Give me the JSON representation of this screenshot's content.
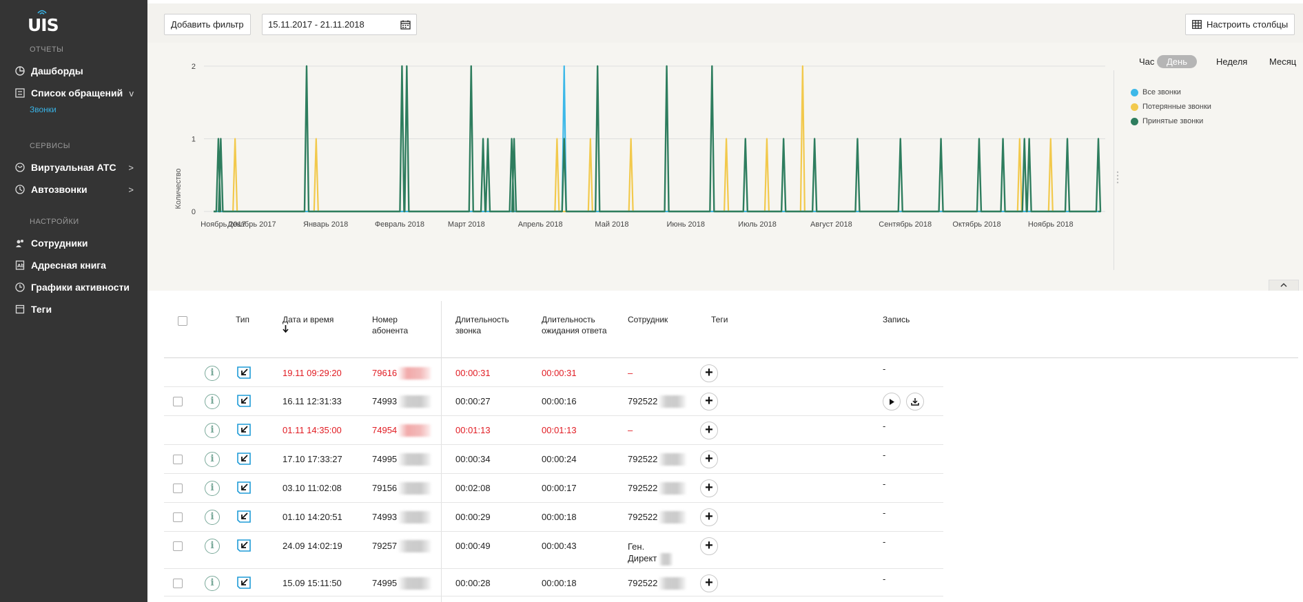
{
  "sidebar": {
    "logo": "UIS",
    "sections": [
      {
        "title": "ОТЧЕТЫ"
      },
      {
        "title": "СЕРВИСЫ"
      },
      {
        "title": "НАСТРОЙКИ"
      }
    ],
    "items": [
      {
        "label": "Дашборды",
        "icon": "pie-chart-icon"
      },
      {
        "label": "Список обращений",
        "icon": "list-icon",
        "chevron": "v"
      },
      {
        "label": "Виртуальная АТС",
        "icon": "cloud-phone-icon",
        "chevron": ">"
      },
      {
        "label": "Автозвонки",
        "icon": "autocall-icon",
        "chevron": ">"
      },
      {
        "label": "Сотрудники",
        "icon": "users-icon"
      },
      {
        "label": "Адресная книга",
        "icon": "address-book-icon"
      },
      {
        "label": "Графики активности",
        "icon": "clock-icon"
      },
      {
        "label": "Теги",
        "icon": "tags-icon"
      }
    ],
    "sub_item": "Звонки"
  },
  "toolbar": {
    "add_filter": "Добавить фильтр",
    "date_range": "15.11.2017 - 21.11.2018",
    "columns_button": "Настроить столбцы"
  },
  "granularity": {
    "options": [
      "Час",
      "День",
      "Неделя",
      "Месяц"
    ],
    "selected": "День"
  },
  "colors": {
    "all": "#3db8e8",
    "lost": "#f2c94c",
    "accepted": "#2e7d5e",
    "red_text": "#e11b22"
  },
  "chart_data": {
    "type": "line",
    "ylabel": "Количество",
    "ylim": [
      0,
      2
    ],
    "y_ticks": [
      "0",
      "1",
      "2"
    ],
    "x_tick_labels": [
      "Ноябрь 2017",
      "Декабрь 2017",
      "Январь 2018",
      "Февраль 2018",
      "Март 2018",
      "Апрель 2018",
      "Май 2018",
      "Июнь 2018",
      "Июль 2018",
      "Август 2018",
      "Сентябрь 2018",
      "Октябрь 2018",
      "Ноябрь 2018"
    ],
    "x_start": "2017-11-15",
    "x_end": "2018-11-21",
    "legend_position": "right",
    "series": [
      {
        "name": "Все звонки",
        "spikes": [
          {
            "date": "2018-04-11",
            "value": 2
          }
        ]
      },
      {
        "name": "Потерянные звонки",
        "spikes": [
          {
            "date": "2017-11-24",
            "value": 1
          },
          {
            "date": "2017-12-28",
            "value": 1
          },
          {
            "date": "2018-04-08",
            "value": 1
          },
          {
            "date": "2018-04-22",
            "value": 1
          },
          {
            "date": "2018-05-09",
            "value": 1
          },
          {
            "date": "2018-06-18",
            "value": 1
          },
          {
            "date": "2018-07-05",
            "value": 1
          },
          {
            "date": "2018-07-20",
            "value": 2
          },
          {
            "date": "2018-10-19",
            "value": 1
          },
          {
            "date": "2018-11-01",
            "value": 1
          }
        ]
      },
      {
        "name": "Принятые звонки",
        "spikes": [
          {
            "date": "2017-11-17",
            "value": 1
          },
          {
            "date": "2017-11-18",
            "value": 1
          },
          {
            "date": "2017-12-24",
            "value": 2
          },
          {
            "date": "2018-02-02",
            "value": 2
          },
          {
            "date": "2018-02-04",
            "value": 2
          },
          {
            "date": "2018-03-03",
            "value": 2
          },
          {
            "date": "2018-03-08",
            "value": 1
          },
          {
            "date": "2018-03-10",
            "value": 1
          },
          {
            "date": "2018-03-20",
            "value": 1
          },
          {
            "date": "2018-03-21",
            "value": 1
          },
          {
            "date": "2018-04-11",
            "value": 1
          },
          {
            "date": "2018-04-25",
            "value": 2
          },
          {
            "date": "2018-05-24",
            "value": 2
          },
          {
            "date": "2018-06-12",
            "value": 2
          },
          {
            "date": "2018-06-26",
            "value": 1
          },
          {
            "date": "2018-07-12",
            "value": 1
          },
          {
            "date": "2018-07-25",
            "value": 1
          },
          {
            "date": "2018-08-12",
            "value": 1
          },
          {
            "date": "2018-08-30",
            "value": 1
          },
          {
            "date": "2018-09-16",
            "value": 1
          },
          {
            "date": "2018-10-02",
            "value": 1
          },
          {
            "date": "2018-10-12",
            "value": 1
          },
          {
            "date": "2018-10-21",
            "value": 1
          },
          {
            "date": "2018-10-23",
            "value": 1
          },
          {
            "date": "2018-11-08",
            "value": 1
          },
          {
            "date": "2018-11-21",
            "value": 1
          }
        ]
      }
    ]
  },
  "table": {
    "headers": {
      "type": "Тип",
      "datetime": "Дата и время",
      "number": "Номер абонента",
      "duration": "Длительность звонка",
      "wait": "Длительность ожидания ответа",
      "employee": "Сотрудник",
      "tags": "Теги",
      "record": "Запись"
    },
    "rows": [
      {
        "datetime": "19.11 09:29:20",
        "number": "79616",
        "duration": "00:00:31",
        "wait": "00:00:31",
        "employee": "–",
        "record": "-",
        "missed": true
      },
      {
        "datetime": "16.11 12:31:33",
        "number": "74993",
        "duration": "00:00:27",
        "wait": "00:00:16",
        "employee": "792522",
        "record": "",
        "missed": false
      },
      {
        "datetime": "01.11 14:35:00",
        "number": "74954",
        "duration": "00:01:13",
        "wait": "00:01:13",
        "employee": "–",
        "record": "-",
        "missed": true
      },
      {
        "datetime": "17.10 17:33:27",
        "number": "74995",
        "duration": "00:00:34",
        "wait": "00:00:24",
        "employee": "792522",
        "record": "-",
        "missed": false
      },
      {
        "datetime": "03.10 11:02:08",
        "number": "79156",
        "duration": "00:02:08",
        "wait": "00:00:17",
        "employee": "792522",
        "record": "-",
        "missed": false
      },
      {
        "datetime": "01.10 14:20:51",
        "number": "74993",
        "duration": "00:00:29",
        "wait": "00:00:18",
        "employee": "792522",
        "record": "-",
        "missed": false
      },
      {
        "datetime": "24.09 14:02:19",
        "number": "79257",
        "duration": "00:00:49",
        "wait": "00:00:43",
        "employee": "Ген. Директ",
        "record": "-",
        "missed": false
      },
      {
        "datetime": "15.09 15:11:50",
        "number": "74995",
        "duration": "00:00:28",
        "wait": "00:00:18",
        "employee": "792522",
        "record": "-",
        "missed": false
      }
    ]
  },
  "icons": {
    "sort": "arrow-down-icon",
    "info": "info-icon",
    "type": "incoming-call-icon",
    "add_tag": "plus-icon",
    "play": "play-icon",
    "download": "download-icon",
    "calendar": "calendar-icon",
    "columns": "columns-grid-icon",
    "collapse": "chevron-up-icon"
  }
}
